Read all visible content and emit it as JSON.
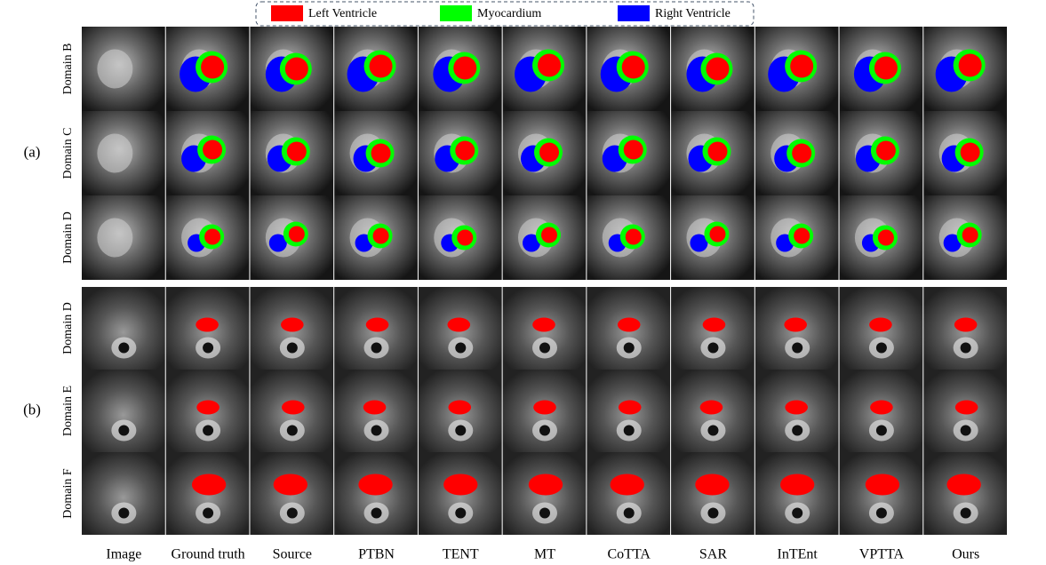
{
  "legend": [
    {
      "label": "Left Ventricle",
      "color": "#ff0000"
    },
    {
      "label": "Myocardium",
      "color": "#00ff00"
    },
    {
      "label": "Right Ventricle",
      "color": "#0000ff"
    }
  ],
  "groups": [
    {
      "label": "(a)",
      "rows": [
        "Domain B",
        "Domain C",
        "Domain D"
      ]
    },
    {
      "label": "(b)",
      "rows": [
        "Domain D",
        "Domain E",
        "Domain F"
      ]
    }
  ],
  "columns": [
    "Image",
    "Ground truth",
    "Source",
    "PTBN",
    "TENT",
    "MT",
    "CoTTA",
    "SAR",
    "InTEnt",
    "VPTTA",
    "Ours"
  ]
}
